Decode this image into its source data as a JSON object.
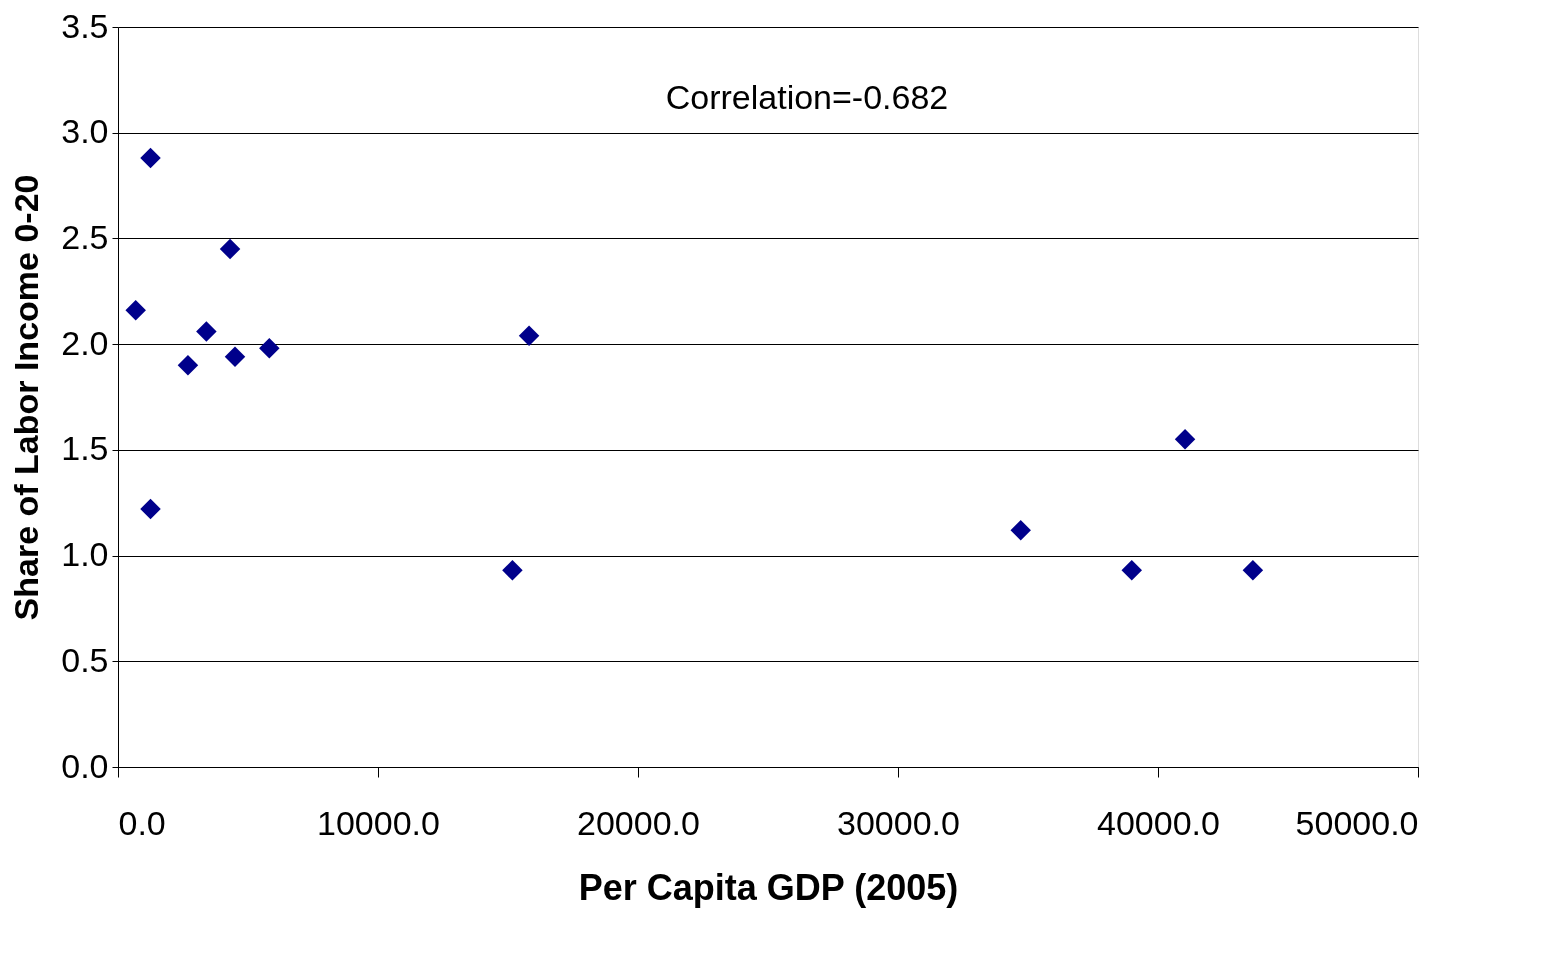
{
  "chart_data": {
    "type": "scatter",
    "xlabel": "Per Capita GDP (2005)",
    "ylabel": "Share of Labor Income 0-20",
    "x": [
      680,
      1250,
      1250,
      2690,
      3400,
      4310,
      4500,
      5820,
      15170,
      15810,
      34720,
      38990,
      41040,
      43650
    ],
    "series": [
      {
        "color": "#00008b",
        "values": [
          2.16,
          2.88,
          1.22,
          1.9,
          2.06,
          2.45,
          1.94,
          1.98,
          0.93,
          2.04,
          1.12,
          0.93,
          1.55,
          0.93
        ]
      }
    ],
    "xlim": [
      0,
      50000
    ],
    "xticks": [
      {
        "value": 0,
        "label": "0.0"
      },
      {
        "value": 10000,
        "label": "10000.0"
      },
      {
        "value": 20000,
        "label": "20000.0"
      },
      {
        "value": 30000,
        "label": "30000.0"
      },
      {
        "value": 40000,
        "label": "40000.0"
      },
      {
        "value": 50000,
        "label": "50000.0"
      }
    ],
    "ylim": [
      0,
      3.5
    ],
    "yticks": [
      {
        "value": 0,
        "label": "0.0"
      },
      {
        "value": 0.5,
        "label": "0.5"
      },
      {
        "value": 1,
        "label": "1.0"
      },
      {
        "value": 1.5,
        "label": "1.5"
      },
      {
        "value": 2,
        "label": "2.0"
      },
      {
        "value": 2.5,
        "label": "2.5"
      },
      {
        "value": 3,
        "label": "3.0"
      },
      {
        "value": 3.5,
        "label": "3.5"
      }
    ],
    "annotations": [
      "Correlation=-0.682"
    ],
    "grid": "y",
    "marker": "diamond"
  }
}
